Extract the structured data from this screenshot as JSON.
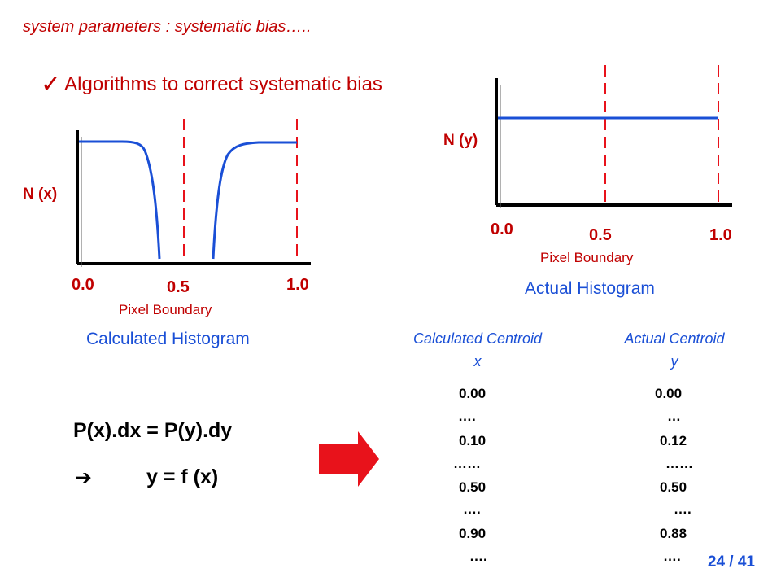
{
  "subtitle": "system parameters : systematic bias…..",
  "bullet": "Algorithms to correct systematic bias",
  "left_chart": {
    "ylabel": "N (x)",
    "ticks": [
      "0.0",
      "0.5",
      "1.0"
    ],
    "xlabel": "Pixel Boundary",
    "caption": "Calculated Histogram"
  },
  "right_chart": {
    "ylabel": "N (y)",
    "ticks": [
      "0.0",
      "0.5",
      "1.0"
    ],
    "xlabel": "Pixel Boundary",
    "caption": "Actual Histogram"
  },
  "table": {
    "calc_header": "Calculated Centroid",
    "calc_var": "x",
    "actual_header": "Actual Centroid",
    "actual_var": "y",
    "calc_values": [
      "0.00",
      "….",
      "0.10",
      "……",
      "0.50",
      "….",
      "0.90",
      "…."
    ],
    "actual_values": [
      "0.00",
      "…",
      "0.12",
      "……",
      "0.50",
      "….",
      "0.88",
      "…."
    ]
  },
  "equation1": "P(x).dx = P(y).dy",
  "implies_symbol": "➔",
  "equation2": "y = f (x)",
  "page": "24 / 41",
  "colors": {
    "red": "#c00000",
    "blue": "#1a4fd6",
    "axis": "#000000",
    "arrow": "#e8121b"
  }
}
